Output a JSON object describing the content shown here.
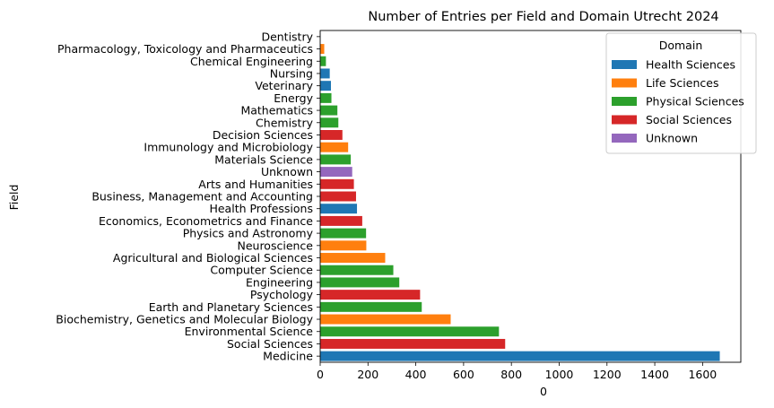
{
  "chart_data": {
    "type": "bar",
    "orientation": "horizontal",
    "title": "Number of Entries per Field and Domain Utrecht 2024",
    "xlabel": "0",
    "ylabel": "Field",
    "xlim": [
      0,
      1760
    ],
    "xticks": [
      0,
      200,
      400,
      600,
      800,
      1000,
      1200,
      1400,
      1600
    ],
    "grid": false,
    "legend": {
      "title": "Domain",
      "placement": "top-right",
      "entries": [
        {
          "name": "Health Sciences",
          "color": "#1f77b4"
        },
        {
          "name": "Life Sciences",
          "color": "#ff7f0e"
        },
        {
          "name": "Physical Sciences",
          "color": "#2ca02c"
        },
        {
          "name": "Social Sciences",
          "color": "#d62728"
        },
        {
          "name": "Unknown",
          "color": "#9467bd"
        }
      ]
    },
    "bars": [
      {
        "field": "Dentistry",
        "value": 1,
        "domain": "Health Sciences"
      },
      {
        "field": "Pharmacology, Toxicology and Pharmaceutics",
        "value": 17,
        "domain": "Life Sciences"
      },
      {
        "field": "Chemical Engineering",
        "value": 24,
        "domain": "Physical Sciences"
      },
      {
        "field": "Nursing",
        "value": 40,
        "domain": "Health Sciences"
      },
      {
        "field": "Veterinary",
        "value": 45,
        "domain": "Health Sciences"
      },
      {
        "field": "Energy",
        "value": 47,
        "domain": "Physical Sciences"
      },
      {
        "field": "Mathematics",
        "value": 72,
        "domain": "Physical Sciences"
      },
      {
        "field": "Chemistry",
        "value": 76,
        "domain": "Physical Sciences"
      },
      {
        "field": "Decision Sciences",
        "value": 93,
        "domain": "Social Sciences"
      },
      {
        "field": "Immunology and Microbiology",
        "value": 117,
        "domain": "Life Sciences"
      },
      {
        "field": "Materials Science",
        "value": 128,
        "domain": "Physical Sciences"
      },
      {
        "field": "Unknown",
        "value": 134,
        "domain": "Unknown"
      },
      {
        "field": "Arts and Humanities",
        "value": 141,
        "domain": "Social Sciences"
      },
      {
        "field": "Business, Management and Accounting",
        "value": 150,
        "domain": "Social Sciences"
      },
      {
        "field": "Health Professions",
        "value": 154,
        "domain": "Health Sciences"
      },
      {
        "field": "Economics, Econometrics and Finance",
        "value": 176,
        "domain": "Social Sciences"
      },
      {
        "field": "Physics and Astronomy",
        "value": 192,
        "domain": "Physical Sciences"
      },
      {
        "field": "Neuroscience",
        "value": 193,
        "domain": "Life Sciences"
      },
      {
        "field": "Agricultural and Biological Sciences",
        "value": 272,
        "domain": "Life Sciences"
      },
      {
        "field": "Computer Science",
        "value": 306,
        "domain": "Physical Sciences"
      },
      {
        "field": "Engineering",
        "value": 331,
        "domain": "Physical Sciences"
      },
      {
        "field": "Psychology",
        "value": 418,
        "domain": "Social Sciences"
      },
      {
        "field": "Earth and Planetary Sciences",
        "value": 425,
        "domain": "Physical Sciences"
      },
      {
        "field": "Biochemistry, Genetics and Molecular Biology",
        "value": 546,
        "domain": "Life Sciences"
      },
      {
        "field": "Environmental Science",
        "value": 748,
        "domain": "Physical Sciences"
      },
      {
        "field": "Social Sciences",
        "value": 774,
        "domain": "Social Sciences"
      },
      {
        "field": "Medicine",
        "value": 1672,
        "domain": "Health Sciences"
      }
    ]
  }
}
